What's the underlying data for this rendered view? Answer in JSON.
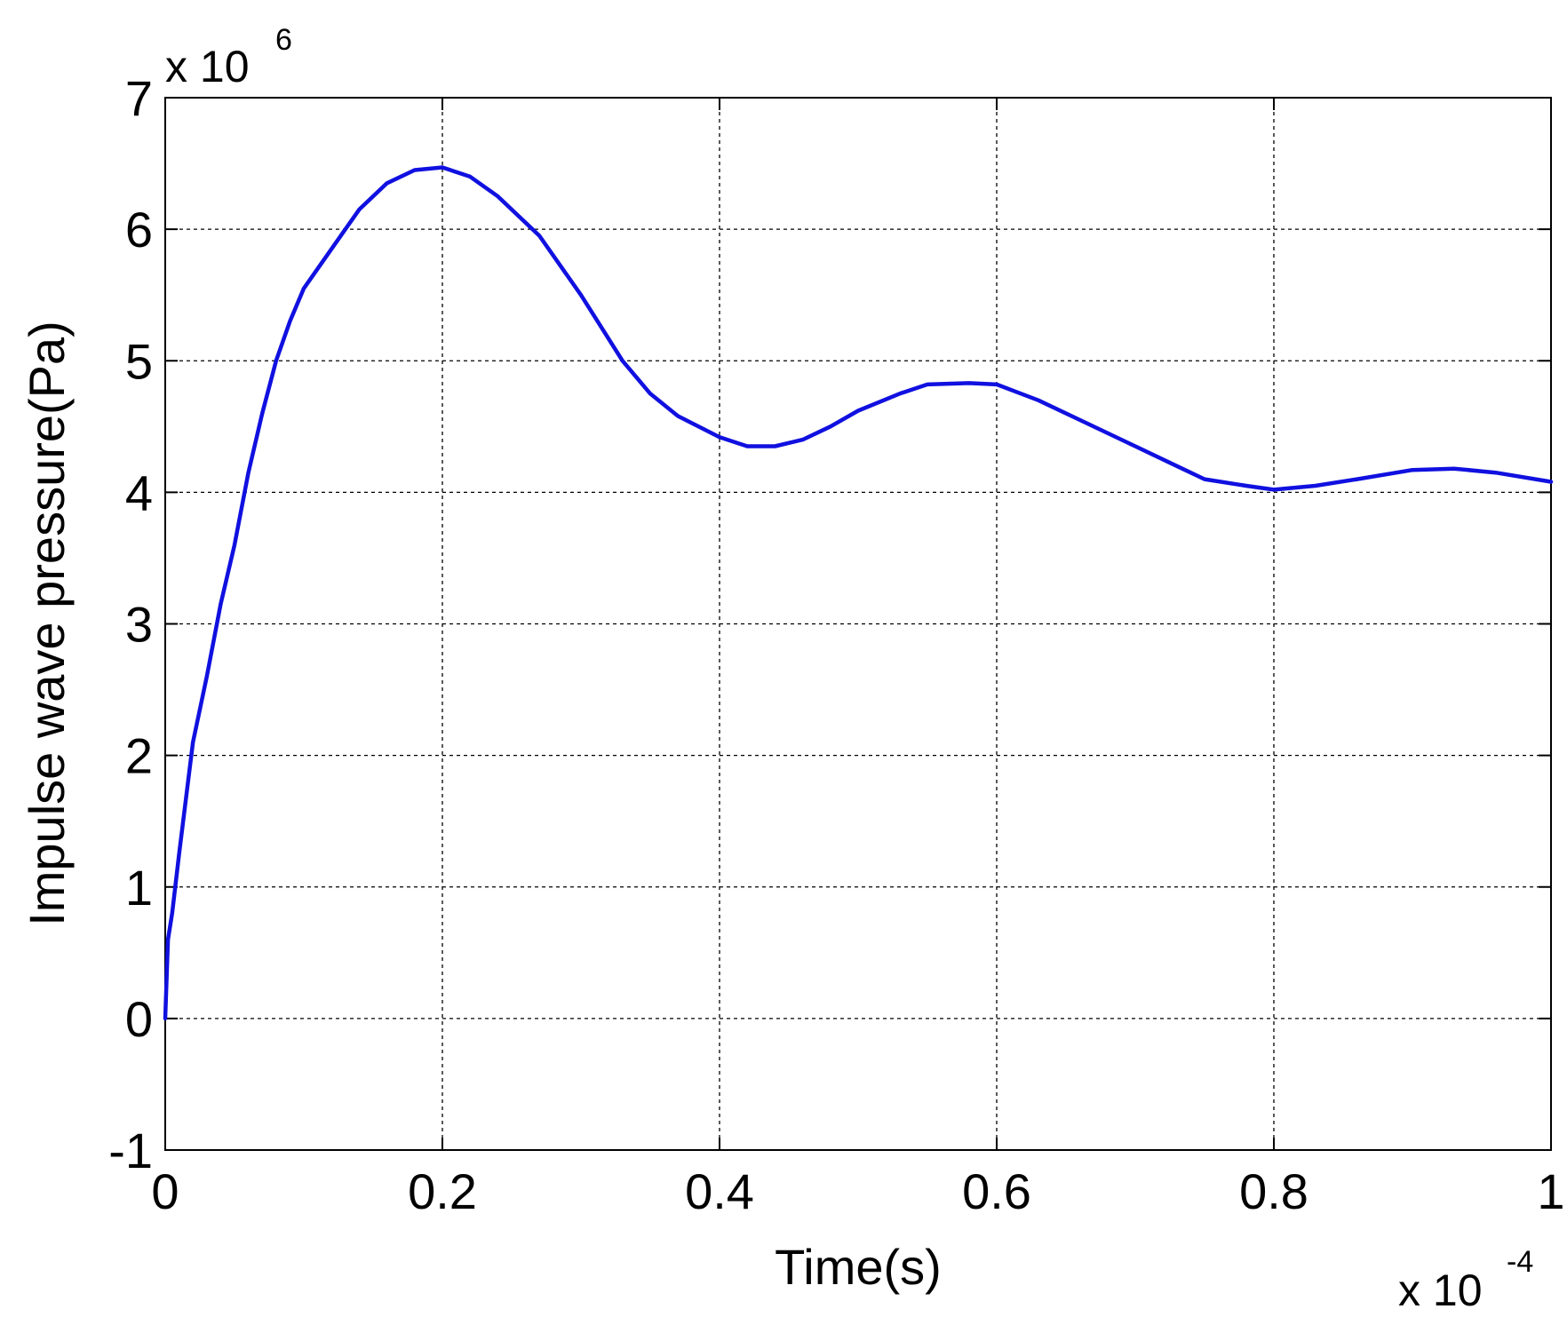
{
  "chart_data": {
    "type": "line",
    "title": "",
    "xlabel": "Time(s)",
    "ylabel": "Impulse  wave pressure(Pa)",
    "x_multiplier": {
      "base": "x 10",
      "exponent": "-4"
    },
    "y_multiplier": {
      "base": "x 10",
      "exponent": "6"
    },
    "xlim": [
      0,
      1
    ],
    "ylim": [
      -1,
      7
    ],
    "x_ticks": [
      "0",
      "0.2",
      "0.4",
      "0.6",
      "0.8",
      "1"
    ],
    "y_ticks": [
      "-1",
      "0",
      "1",
      "2",
      "3",
      "4",
      "5",
      "6",
      "7"
    ],
    "grid": true,
    "series": [
      {
        "color": "#1010e0",
        "x": [
          0,
          0.002,
          0.005,
          0.01,
          0.02,
          0.03,
          0.04,
          0.05,
          0.06,
          0.07,
          0.08,
          0.09,
          0.1,
          0.12,
          0.14,
          0.16,
          0.18,
          0.2,
          0.22,
          0.24,
          0.27,
          0.3,
          0.33,
          0.35,
          0.37,
          0.4,
          0.42,
          0.44,
          0.46,
          0.48,
          0.5,
          0.53,
          0.55,
          0.58,
          0.6,
          0.63,
          0.66,
          0.7,
          0.73,
          0.75,
          0.78,
          0.8,
          0.83,
          0.86,
          0.9,
          0.93,
          0.96,
          1.0
        ],
        "y": [
          0,
          0.6,
          0.8,
          1.25,
          2.1,
          2.6,
          3.15,
          3.6,
          4.15,
          4.6,
          5.0,
          5.3,
          5.55,
          5.85,
          6.15,
          6.35,
          6.45,
          6.47,
          6.4,
          6.25,
          5.95,
          5.5,
          5.0,
          4.75,
          4.58,
          4.42,
          4.35,
          4.35,
          4.4,
          4.5,
          4.62,
          4.75,
          4.82,
          4.83,
          4.82,
          4.7,
          4.55,
          4.35,
          4.2,
          4.1,
          4.05,
          4.02,
          4.05,
          4.1,
          4.17,
          4.18,
          4.15,
          4.08
        ]
      }
    ]
  }
}
